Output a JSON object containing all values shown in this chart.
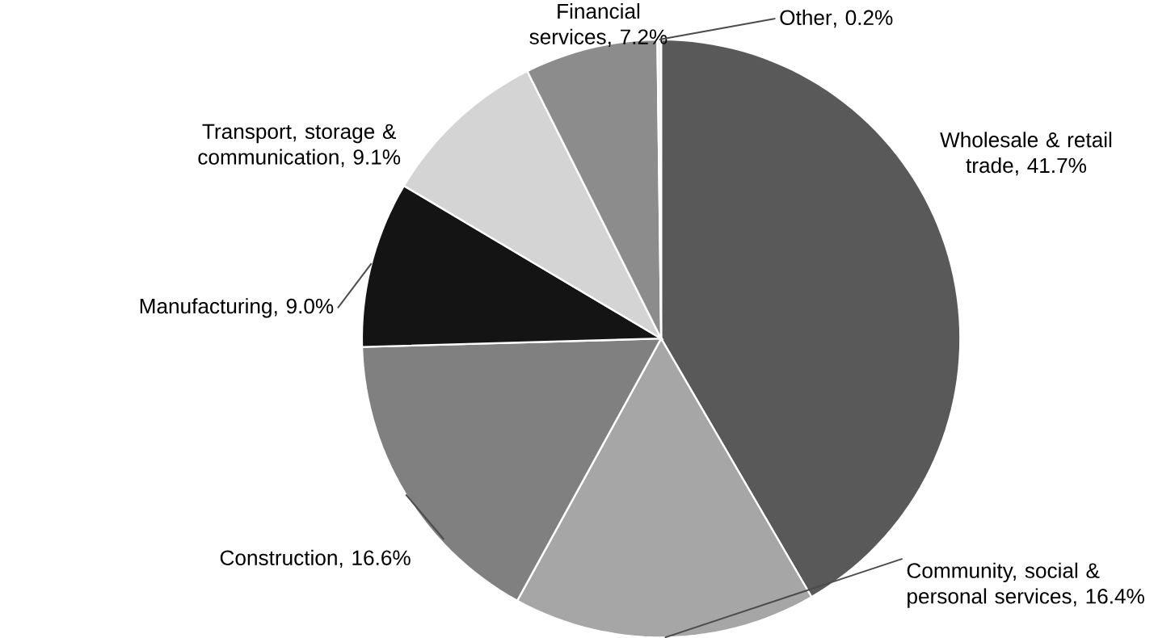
{
  "chart_data": {
    "type": "pie",
    "categories": [
      "Wholesale & retail trade",
      "Community, social & personal services",
      "Construction",
      "Manufacturing",
      "Transport, storage & communication",
      "Financial services",
      "Other"
    ],
    "values": [
      41.7,
      16.4,
      16.6,
      9.0,
      9.1,
      7.2,
      0.2
    ],
    "value_labels": [
      ", 41.7%",
      ", 16.4%",
      ", 16.6%",
      ", 9.0%",
      ", 9.1%",
      ", 7.2%",
      ", 0.2%"
    ],
    "colors": [
      "#595959",
      "#a6a6a6",
      "#808080",
      "#141414",
      "#d4d4d4",
      "#8c8c8c",
      "#f2f2f2"
    ]
  }
}
